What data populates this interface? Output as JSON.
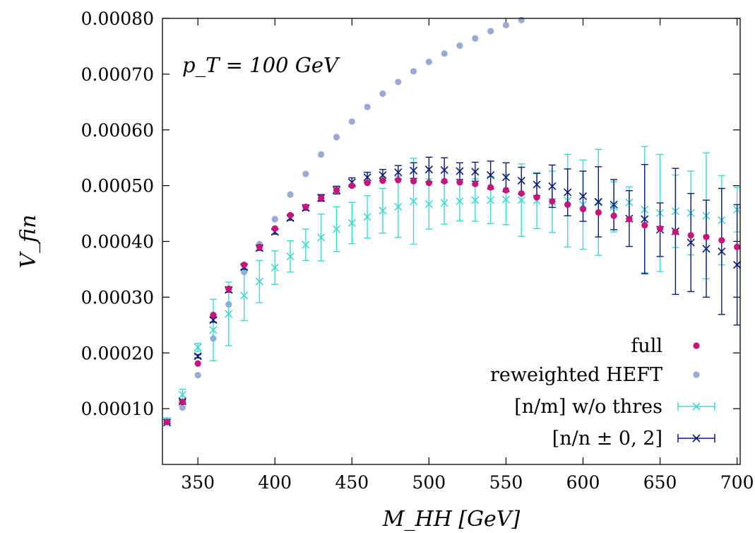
{
  "chart_data": {
    "type": "scatter",
    "annotation": "p_T = 100 GeV",
    "xlabel": "M_HH [GeV]",
    "ylabel": "V_fin",
    "xlim": [
      327,
      702
    ],
    "ylim": [
      0.0,
      0.0008
    ],
    "x_ticks": [
      350,
      400,
      450,
      500,
      550,
      600,
      650,
      700
    ],
    "y_ticks": [
      0.0001,
      0.0002,
      0.0003,
      0.0004,
      0.0005,
      0.0006,
      0.0007,
      0.0008
    ],
    "y_tick_labels": [
      "0.00010",
      "0.00020",
      "0.00030",
      "0.00040",
      "0.00050",
      "0.00060",
      "0.00070",
      "0.00080"
    ],
    "legend_position": "bottom-right",
    "colors": {
      "full": "#c8147a",
      "heft": "#99aad6",
      "nm": "#40d8d0",
      "nn": "#0a1a78"
    },
    "x": [
      330,
      340,
      350,
      360,
      370,
      380,
      390,
      400,
      410,
      420,
      430,
      440,
      450,
      460,
      470,
      480,
      490,
      500,
      510,
      520,
      530,
      540,
      550,
      560,
      570,
      580,
      590,
      600,
      610,
      620,
      630,
      640,
      650,
      660,
      670,
      680,
      690,
      700
    ],
    "series": [
      {
        "name": "full",
        "key": "full",
        "marker": "dot",
        "values": [
          7.6e-05,
          0.000112,
          0.000181,
          0.000268,
          0.000315,
          0.000358,
          0.00039,
          0.000423,
          0.000447,
          0.000462,
          0.000478,
          0.000492,
          0.0005,
          0.000505,
          0.000509,
          0.00051,
          0.000508,
          0.000505,
          0.000508,
          0.000506,
          0.000503,
          0.000497,
          0.000492,
          0.000486,
          0.000479,
          0.000472,
          0.000466,
          0.000458,
          0.000452,
          0.000446,
          0.00044,
          0.000429,
          0.000423,
          0.000417,
          0.000411,
          0.000408,
          0.000402,
          0.00039
        ]
      },
      {
        "name": "reweighted HEFT",
        "key": "heft",
        "marker": "dot",
        "values": [
          7.9e-05,
          0.000102,
          0.00016,
          0.000226,
          0.000287,
          0.000345,
          0.000395,
          0.00044,
          0.000484,
          0.000521,
          0.000556,
          0.000587,
          0.000615,
          0.000641,
          0.000665,
          0.000686,
          0.000705,
          0.000722,
          0.000737,
          0.000751,
          0.000764,
          0.000777,
          0.000788,
          0.000797
        ]
      },
      {
        "name": "[n/m] w/o thres",
        "key": "nm",
        "marker": "cross",
        "values": [
          7.8e-05,
          0.000125,
          0.00021,
          0.000241,
          0.00027,
          0.000303,
          0.000328,
          0.000353,
          0.000373,
          0.000394,
          0.000407,
          0.000422,
          0.000433,
          0.000444,
          0.000455,
          0.000462,
          0.000472,
          0.000467,
          0.000469,
          0.000472,
          0.000474,
          0.000474,
          0.000475,
          0.000474,
          0.000473,
          0.000471,
          0.000473,
          0.000466,
          0.00047,
          0.000462,
          0.00047,
          0.000457,
          0.000451,
          0.000454,
          0.000451,
          0.000446,
          0.000438,
          0.000457
        ],
        "errors": [
          4e-06,
          1e-05,
          7e-06,
          5.5e-05,
          5.7e-05,
          4.5e-05,
          3.8e-05,
          3e-05,
          2.8e-05,
          2.8e-05,
          4.2e-05,
          4e-05,
          3.7e-05,
          3.8e-05,
          4e-05,
          5.5e-05,
          7.7e-05,
          4.5e-05,
          3.8e-05,
          3.5e-05,
          3.8e-05,
          4.2e-05,
          4.5e-05,
          6.5e-05,
          5e-05,
          5.5e-05,
          8.3e-05,
          8e-05,
          9.5e-05,
          4.5e-05,
          2.8e-05,
          0.000113,
          0.000105,
          6.5e-05,
          7.5e-05,
          0.000113,
          8e-05,
          4e-05
        ]
      },
      {
        "name": "[n/n ± 0, 2]",
        "key": "nn",
        "marker": "cross",
        "values": [
          7.5e-05,
          0.000113,
          0.000194,
          0.000259,
          0.000313,
          0.000354,
          0.000388,
          0.000417,
          0.000442,
          0.00046,
          0.000478,
          0.000492,
          0.000506,
          0.000515,
          0.000519,
          0.000524,
          0.000527,
          0.000529,
          0.000528,
          0.000526,
          0.000525,
          0.000519,
          0.000515,
          0.000509,
          0.000502,
          0.000499,
          0.000488,
          0.000481,
          0.000471,
          0.000466,
          0.000441,
          0.00044,
          0.000421,
          0.000418,
          0.000398,
          0.000387,
          0.000382,
          0.000358
        ],
        "errors": [
          2e-06,
          3e-06,
          3e-06,
          4e-06,
          4e-06,
          4e-06,
          4e-06,
          4e-06,
          4e-06,
          4e-06,
          6e-06,
          7e-06,
          8e-06,
          9e-06,
          1e-05,
          1.2e-05,
          1.4e-05,
          2.2e-05,
          2.2e-05,
          1.5e-05,
          1.7e-05,
          2.5e-05,
          2.6e-05,
          2.4e-05,
          2e-05,
          3.8e-05,
          4.2e-05,
          4.5e-05,
          6.3e-05,
          4.5e-05,
          5e-05,
          9.8e-05,
          4.8e-05,
          0.000113,
          8.8e-05,
          8.7e-05,
          0.000113,
          0.000108
        ]
      }
    ]
  }
}
